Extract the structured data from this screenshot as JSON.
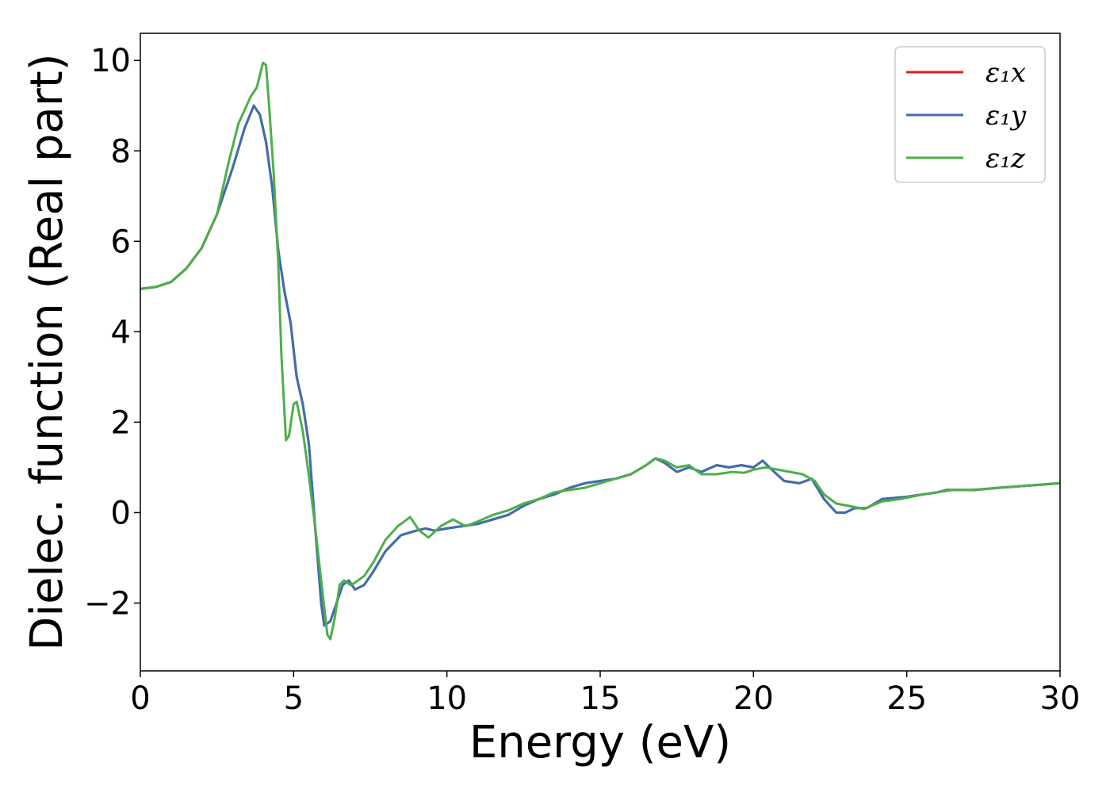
{
  "chart_data": {
    "type": "line",
    "title": "",
    "xlabel": "Energy (eV)",
    "ylabel": "Dielec. function (Real part)",
    "xlim": [
      0,
      30
    ],
    "ylim": [
      -3.5,
      10.6
    ],
    "xticks": [
      0,
      5,
      10,
      15,
      20,
      25,
      30
    ],
    "yticks": [
      -2,
      0,
      2,
      4,
      6,
      8,
      10
    ],
    "xtick_labels": [
      "0",
      "5",
      "10",
      "15",
      "20",
      "25",
      "30"
    ],
    "ytick_labels": [
      "−2",
      "0",
      "2",
      "4",
      "6",
      "8",
      "10"
    ],
    "grid": false,
    "legend_position": "top-right",
    "series": [
      {
        "name": "ε₁x",
        "color": "#e41a1c",
        "points": [
          [
            0,
            4.95
          ],
          [
            0.5,
            4.99
          ],
          [
            1,
            5.1
          ],
          [
            1.5,
            5.4
          ],
          [
            2,
            5.85
          ],
          [
            2.5,
            6.6
          ],
          [
            3,
            7.6
          ],
          [
            3.4,
            8.5
          ],
          [
            3.7,
            9.0
          ],
          [
            3.9,
            8.8
          ],
          [
            4.1,
            8.2
          ],
          [
            4.3,
            7.2
          ],
          [
            4.5,
            5.8
          ],
          [
            4.7,
            4.9
          ],
          [
            4.9,
            4.2
          ],
          [
            5.1,
            3.0
          ],
          [
            5.3,
            2.4
          ],
          [
            5.5,
            1.5
          ],
          [
            5.7,
            -0.3
          ],
          [
            5.9,
            -2.0
          ],
          [
            6.0,
            -2.5
          ],
          [
            6.2,
            -2.4
          ],
          [
            6.4,
            -2.0
          ],
          [
            6.6,
            -1.6
          ],
          [
            6.8,
            -1.5
          ],
          [
            7.0,
            -1.7
          ],
          [
            7.3,
            -1.6
          ],
          [
            7.6,
            -1.3
          ],
          [
            8.0,
            -0.85
          ],
          [
            8.5,
            -0.5
          ],
          [
            9.0,
            -0.4
          ],
          [
            9.3,
            -0.35
          ],
          [
            9.6,
            -0.4
          ],
          [
            10,
            -0.35
          ],
          [
            10.5,
            -0.3
          ],
          [
            11,
            -0.25
          ],
          [
            11.5,
            -0.15
          ],
          [
            12,
            -0.05
          ],
          [
            12.5,
            0.15
          ],
          [
            13,
            0.3
          ],
          [
            13.5,
            0.4
          ],
          [
            14,
            0.55
          ],
          [
            14.5,
            0.65
          ],
          [
            15,
            0.7
          ],
          [
            15.5,
            0.75
          ],
          [
            16,
            0.85
          ],
          [
            16.5,
            1.05
          ],
          [
            16.8,
            1.2
          ],
          [
            17.1,
            1.1
          ],
          [
            17.5,
            0.9
          ],
          [
            17.9,
            1.0
          ],
          [
            18.3,
            0.9
          ],
          [
            18.8,
            1.05
          ],
          [
            19.2,
            1.0
          ],
          [
            19.6,
            1.05
          ],
          [
            20.0,
            1.0
          ],
          [
            20.3,
            1.15
          ],
          [
            20.6,
            0.95
          ],
          [
            21.0,
            0.7
          ],
          [
            21.5,
            0.65
          ],
          [
            21.9,
            0.75
          ],
          [
            22.3,
            0.3
          ],
          [
            22.7,
            0.0
          ],
          [
            23.0,
            0.0
          ],
          [
            23.3,
            0.1
          ],
          [
            23.7,
            0.1
          ],
          [
            24.2,
            0.3
          ],
          [
            25,
            0.35
          ],
          [
            25.5,
            0.4
          ],
          [
            26,
            0.45
          ],
          [
            26.3,
            0.5
          ],
          [
            26.7,
            0.5
          ],
          [
            27.2,
            0.5
          ],
          [
            28,
            0.55
          ],
          [
            29,
            0.6
          ],
          [
            30,
            0.65
          ]
        ]
      },
      {
        "name": "ε₁y",
        "color": "#3c6fb0",
        "points": [
          [
            0,
            4.95
          ],
          [
            0.5,
            4.99
          ],
          [
            1,
            5.1
          ],
          [
            1.5,
            5.4
          ],
          [
            2,
            5.85
          ],
          [
            2.5,
            6.6
          ],
          [
            3,
            7.6
          ],
          [
            3.4,
            8.5
          ],
          [
            3.7,
            9.0
          ],
          [
            3.9,
            8.8
          ],
          [
            4.1,
            8.2
          ],
          [
            4.3,
            7.2
          ],
          [
            4.5,
            5.8
          ],
          [
            4.7,
            4.9
          ],
          [
            4.9,
            4.2
          ],
          [
            5.1,
            3.0
          ],
          [
            5.3,
            2.4
          ],
          [
            5.5,
            1.5
          ],
          [
            5.7,
            -0.3
          ],
          [
            5.9,
            -2.0
          ],
          [
            6.0,
            -2.5
          ],
          [
            6.2,
            -2.4
          ],
          [
            6.4,
            -2.0
          ],
          [
            6.6,
            -1.6
          ],
          [
            6.8,
            -1.5
          ],
          [
            7.0,
            -1.7
          ],
          [
            7.3,
            -1.6
          ],
          [
            7.6,
            -1.3
          ],
          [
            8.0,
            -0.85
          ],
          [
            8.5,
            -0.5
          ],
          [
            9.0,
            -0.4
          ],
          [
            9.3,
            -0.35
          ],
          [
            9.6,
            -0.4
          ],
          [
            10,
            -0.35
          ],
          [
            10.5,
            -0.3
          ],
          [
            11,
            -0.25
          ],
          [
            11.5,
            -0.15
          ],
          [
            12,
            -0.05
          ],
          [
            12.5,
            0.15
          ],
          [
            13,
            0.3
          ],
          [
            13.5,
            0.4
          ],
          [
            14,
            0.55
          ],
          [
            14.5,
            0.65
          ],
          [
            15,
            0.7
          ],
          [
            15.5,
            0.75
          ],
          [
            16,
            0.85
          ],
          [
            16.5,
            1.05
          ],
          [
            16.8,
            1.2
          ],
          [
            17.1,
            1.1
          ],
          [
            17.5,
            0.9
          ],
          [
            17.9,
            1.0
          ],
          [
            18.3,
            0.9
          ],
          [
            18.8,
            1.05
          ],
          [
            19.2,
            1.0
          ],
          [
            19.6,
            1.05
          ],
          [
            20.0,
            1.0
          ],
          [
            20.3,
            1.15
          ],
          [
            20.6,
            0.95
          ],
          [
            21.0,
            0.7
          ],
          [
            21.5,
            0.65
          ],
          [
            21.9,
            0.75
          ],
          [
            22.3,
            0.3
          ],
          [
            22.7,
            0.0
          ],
          [
            23.0,
            0.0
          ],
          [
            23.3,
            0.1
          ],
          [
            23.7,
            0.1
          ],
          [
            24.2,
            0.3
          ],
          [
            25,
            0.35
          ],
          [
            25.5,
            0.4
          ],
          [
            26,
            0.45
          ],
          [
            26.3,
            0.5
          ],
          [
            26.7,
            0.5
          ],
          [
            27.2,
            0.5
          ],
          [
            28,
            0.55
          ],
          [
            29,
            0.6
          ],
          [
            30,
            0.65
          ]
        ]
      },
      {
        "name": "ε₁z",
        "color": "#4daf4a",
        "points": [
          [
            0,
            4.95
          ],
          [
            0.5,
            4.99
          ],
          [
            1,
            5.1
          ],
          [
            1.5,
            5.4
          ],
          [
            2,
            5.85
          ],
          [
            2.5,
            6.6
          ],
          [
            2.9,
            7.8
          ],
          [
            3.2,
            8.6
          ],
          [
            3.6,
            9.2
          ],
          [
            3.8,
            9.4
          ],
          [
            4.0,
            9.95
          ],
          [
            4.1,
            9.9
          ],
          [
            4.2,
            9.0
          ],
          [
            4.35,
            7.5
          ],
          [
            4.5,
            5.5
          ],
          [
            4.6,
            3.5
          ],
          [
            4.75,
            1.6
          ],
          [
            4.85,
            1.7
          ],
          [
            5.0,
            2.4
          ],
          [
            5.1,
            2.45
          ],
          [
            5.3,
            1.8
          ],
          [
            5.5,
            0.8
          ],
          [
            5.7,
            -0.3
          ],
          [
            5.9,
            -1.5
          ],
          [
            6.0,
            -2.1
          ],
          [
            6.1,
            -2.7
          ],
          [
            6.2,
            -2.8
          ],
          [
            6.35,
            -2.3
          ],
          [
            6.5,
            -1.6
          ],
          [
            6.65,
            -1.5
          ],
          [
            6.85,
            -1.6
          ],
          [
            7.0,
            -1.55
          ],
          [
            7.3,
            -1.4
          ],
          [
            7.6,
            -1.1
          ],
          [
            8.0,
            -0.6
          ],
          [
            8.4,
            -0.3
          ],
          [
            8.8,
            -0.1
          ],
          [
            9.1,
            -0.4
          ],
          [
            9.4,
            -0.55
          ],
          [
            9.8,
            -0.3
          ],
          [
            10.2,
            -0.15
          ],
          [
            10.6,
            -0.3
          ],
          [
            11,
            -0.2
          ],
          [
            11.5,
            -0.05
          ],
          [
            12,
            0.05
          ],
          [
            12.5,
            0.2
          ],
          [
            13,
            0.3
          ],
          [
            13.5,
            0.45
          ],
          [
            14,
            0.5
          ],
          [
            14.5,
            0.55
          ],
          [
            15,
            0.65
          ],
          [
            15.5,
            0.75
          ],
          [
            16,
            0.85
          ],
          [
            16.5,
            1.05
          ],
          [
            16.8,
            1.2
          ],
          [
            17.1,
            1.15
          ],
          [
            17.5,
            1.0
          ],
          [
            17.9,
            1.05
          ],
          [
            18.3,
            0.85
          ],
          [
            18.8,
            0.85
          ],
          [
            19.3,
            0.9
          ],
          [
            19.7,
            0.88
          ],
          [
            20.0,
            0.95
          ],
          [
            20.4,
            1.0
          ],
          [
            20.8,
            0.95
          ],
          [
            21.2,
            0.9
          ],
          [
            21.6,
            0.85
          ],
          [
            22.0,
            0.7
          ],
          [
            22.3,
            0.4
          ],
          [
            22.7,
            0.2
          ],
          [
            23.1,
            0.15
          ],
          [
            23.6,
            0.08
          ],
          [
            24.2,
            0.25
          ],
          [
            24.8,
            0.3
          ],
          [
            25.5,
            0.4
          ],
          [
            26,
            0.45
          ],
          [
            26.5,
            0.5
          ],
          [
            27,
            0.5
          ],
          [
            27.5,
            0.52
          ],
          [
            28,
            0.55
          ],
          [
            29,
            0.6
          ],
          [
            30,
            0.65
          ]
        ]
      }
    ]
  }
}
